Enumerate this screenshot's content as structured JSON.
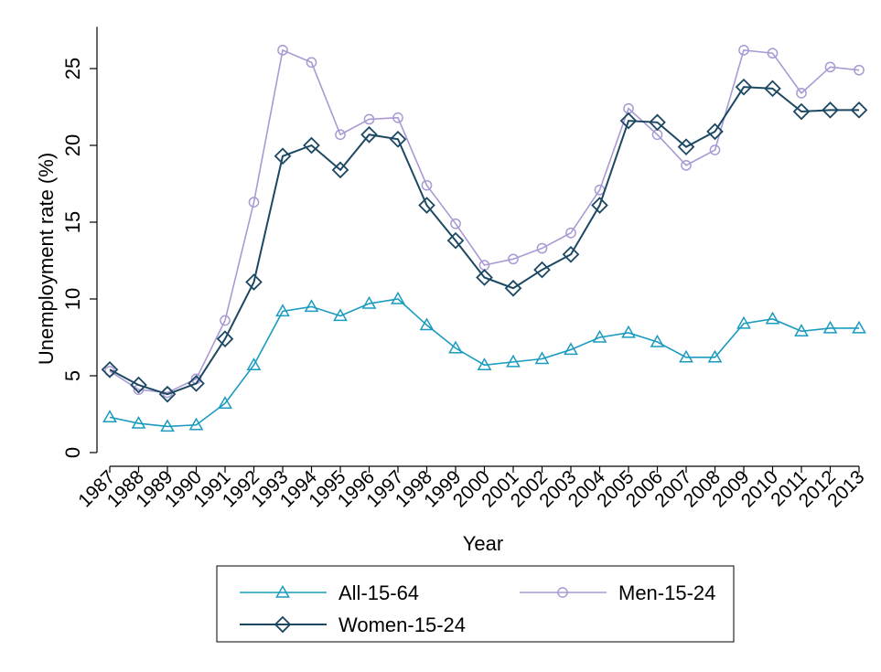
{
  "chart_data": {
    "type": "line",
    "title": "",
    "xlabel": "Year",
    "ylabel": "Unemployment rate (%)",
    "ylim": [
      0,
      27
    ],
    "yticks": [
      0,
      5,
      10,
      15,
      20,
      25
    ],
    "grid": false,
    "legend_placement": "bottom",
    "x": [
      "1987",
      "1988",
      "1989",
      "1990",
      "1991",
      "1992",
      "1993",
      "1994",
      "1995",
      "1996",
      "1997",
      "1998",
      "1999",
      "2000",
      "2001",
      "2002",
      "2003",
      "2004",
      "2005",
      "2006",
      "2007",
      "2008",
      "2009",
      "2010",
      "2011",
      "2012",
      "2013"
    ],
    "series": [
      {
        "name": "All-15-64",
        "color": "#1a9bbf",
        "marker": "triangle",
        "values": [
          2.3,
          1.9,
          1.7,
          1.8,
          3.2,
          5.7,
          9.2,
          9.5,
          8.9,
          9.7,
          10.0,
          8.3,
          6.8,
          5.7,
          5.9,
          6.1,
          6.7,
          7.5,
          7.8,
          7.2,
          6.2,
          6.2,
          8.4,
          8.7,
          7.9,
          8.1,
          8.1
        ]
      },
      {
        "name": "Men-15-24",
        "color": "#a99ad4",
        "marker": "circle",
        "values": [
          5.3,
          4.1,
          3.9,
          4.8,
          8.6,
          16.3,
          26.2,
          25.4,
          20.7,
          21.7,
          21.8,
          17.4,
          14.9,
          12.2,
          12.6,
          13.3,
          14.3,
          17.1,
          22.4,
          20.7,
          18.7,
          19.7,
          26.2,
          26.0,
          23.4,
          25.1,
          24.9
        ]
      },
      {
        "name": "Women-15-24",
        "color": "#1c4863",
        "marker": "diamond",
        "values": [
          5.4,
          4.4,
          3.8,
          4.5,
          7.4,
          11.1,
          19.3,
          20.0,
          18.4,
          20.7,
          20.4,
          16.1,
          13.8,
          11.4,
          10.7,
          11.9,
          12.9,
          16.1,
          21.6,
          21.5,
          19.9,
          20.9,
          23.8,
          23.7,
          22.2,
          22.3,
          22.3
        ]
      }
    ]
  }
}
